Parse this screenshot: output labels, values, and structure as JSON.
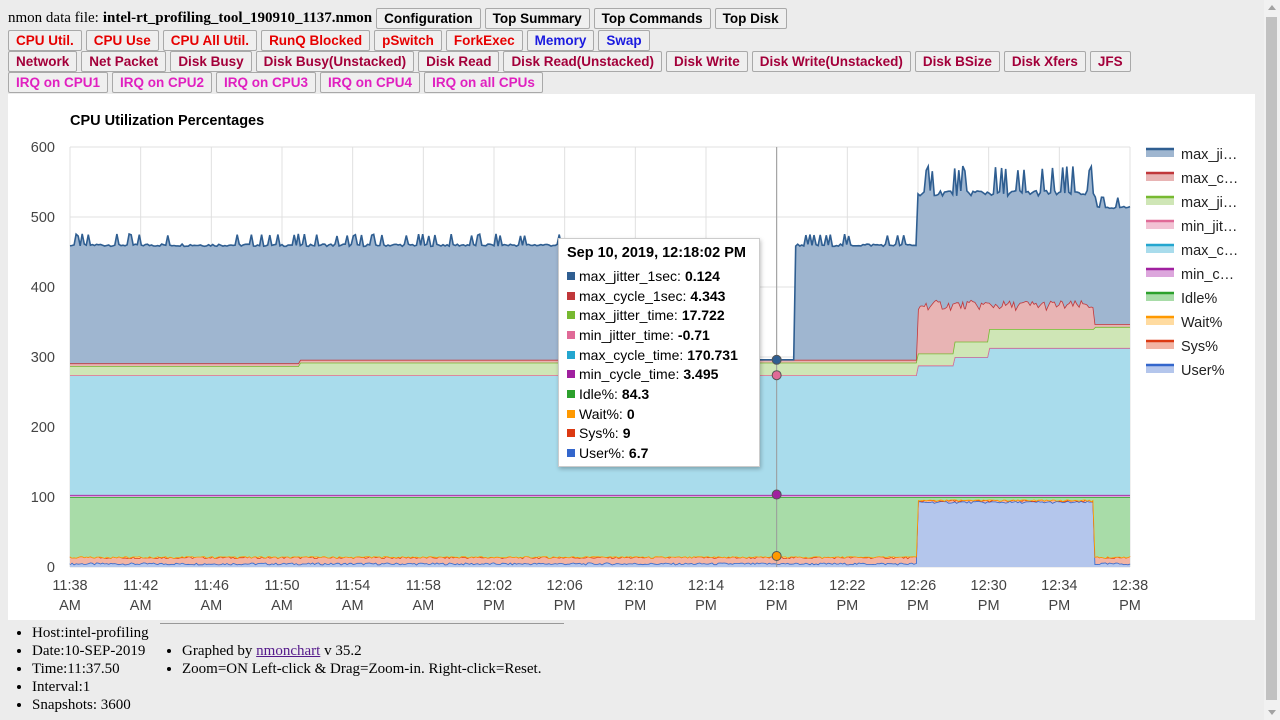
{
  "header": {
    "file_label": "nmon data file:",
    "file_name": "intel-rt_profiling_tool_190910_1137.nmon",
    "buttons": [
      "Configuration",
      "Top Summary",
      "Top Commands",
      "Top Disk"
    ]
  },
  "row1": [
    "CPU Util.",
    "CPU Use",
    "CPU All Util.",
    "RunQ Blocked",
    "pSwitch",
    "ForkExec",
    "Memory",
    "Swap"
  ],
  "row2": [
    "Network",
    "Net Packet",
    "Disk Busy",
    "Disk Busy(Unstacked)",
    "Disk Read",
    "Disk Read(Unstacked)",
    "Disk Write",
    "Disk Write(Unstacked)",
    "Disk BSize",
    "Disk Xfers",
    "JFS"
  ],
  "row3": [
    "IRQ on CPU1",
    "IRQ on CPU2",
    "IRQ on CPU3",
    "IRQ on CPU4",
    "IRQ on all CPUs"
  ],
  "colors": {
    "button_red": "#e60000",
    "button_blue": "#1a1adf",
    "button_maroon": "#a3003a",
    "button_magenta": "#e020c0"
  },
  "chart": {
    "title": "CPU Utilization Percentages",
    "legend": [
      {
        "label": "max_ji…",
        "color": "#2f5e91",
        "fill": "#9fb6d0"
      },
      {
        "label": "max_c…",
        "color": "#c0373a",
        "fill": "#e8b4b4"
      },
      {
        "label": "max_ji…",
        "color": "#77b931",
        "fill": "#cfe6b6"
      },
      {
        "label": "min_jit…",
        "color": "#e06a97",
        "fill": "#f2c2d4"
      },
      {
        "label": "max_c…",
        "color": "#23a6cf",
        "fill": "#a9dcec"
      },
      {
        "label": "min_c…",
        "color": "#a0209f",
        "fill": "#dca6dc"
      },
      {
        "label": "Idle%",
        "color": "#2ca02c",
        "fill": "#a8dca8"
      },
      {
        "label": "Wait%",
        "color": "#ff9900",
        "fill": "#ffdba0"
      },
      {
        "label": "Sys%",
        "color": "#dc3912",
        "fill": "#f2b4a4"
      },
      {
        "label": "User%",
        "color": "#3366cc",
        "fill": "#b4c6ec"
      }
    ],
    "y_ticks": [
      "0",
      "100",
      "200",
      "300",
      "400",
      "500",
      "600"
    ],
    "x_ticks": [
      [
        "11:38",
        "AM"
      ],
      [
        "11:42",
        "AM"
      ],
      [
        "11:46",
        "AM"
      ],
      [
        "11:50",
        "AM"
      ],
      [
        "11:54",
        "AM"
      ],
      [
        "11:58",
        "AM"
      ],
      [
        "12:02",
        "PM"
      ],
      [
        "12:06",
        "PM"
      ],
      [
        "12:10",
        "PM"
      ],
      [
        "12:14",
        "PM"
      ],
      [
        "12:18",
        "PM"
      ],
      [
        "12:22",
        "PM"
      ],
      [
        "12:26",
        "PM"
      ],
      [
        "12:30",
        "PM"
      ],
      [
        "12:34",
        "PM"
      ],
      [
        "12:38",
        "PM"
      ]
    ]
  },
  "chart_data": {
    "type": "area",
    "title": "CPU Utilization Percentages",
    "stacked": true,
    "ylim": [
      0,
      600
    ],
    "x_range": [
      "11:38 AM",
      "12:38 PM"
    ],
    "series_names": [
      "max_jitter_1sec",
      "max_cycle_1sec",
      "max_jitter_time",
      "min_jitter_time",
      "max_cycle_time",
      "min_cycle_time",
      "Idle%",
      "Wait%",
      "Sys%",
      "User%"
    ],
    "stack_top_levels": [
      {
        "x": "11:38 AM",
        "User%": 5,
        "Sys%": 14,
        "Wait%": 14,
        "Idle%": 100,
        "min_cycle_time": 103,
        "max_cycle_time": 274,
        "min_jitter_time": 274,
        "max_jitter_time": 287,
        "max_cycle_1sec": 291,
        "max_jitter_1sec": 458
      },
      {
        "x": "12:18 PM",
        "User%": 6.7,
        "Sys%": 15.7,
        "Wait%": 15.7,
        "Idle%": 100,
        "min_cycle_time": 103.5,
        "max_cycle_time": 274,
        "min_jitter_time": 274,
        "max_jitter_time": 292,
        "max_cycle_1sec": 296,
        "max_jitter_1sec": 296
      },
      {
        "x": "12:27 PM",
        "User%": 93,
        "Sys%": 95,
        "Wait%": 95,
        "Idle%": 100,
        "min_cycle_time": 103,
        "max_cycle_time": 300,
        "min_jitter_time": 300,
        "max_jitter_time": 322,
        "max_cycle_1sec": 368,
        "max_jitter_1sec": 530
      },
      {
        "x": "12:38 PM",
        "User%": 5,
        "Sys%": 14,
        "Wait%": 14,
        "Idle%": 100,
        "min_cycle_time": 103,
        "max_cycle_time": 313,
        "min_jitter_time": 313,
        "max_jitter_time": 343,
        "max_cycle_1sec": 347,
        "max_jitter_1sec": 512
      }
    ]
  },
  "tooltip": {
    "title": "Sep 10, 2019, 12:18:02 PM",
    "rows": [
      {
        "name": "max_jitter_1sec:",
        "value": "0.124",
        "color": "#2f5e91"
      },
      {
        "name": "max_cycle_1sec:",
        "value": "4.343",
        "color": "#c0373a"
      },
      {
        "name": "max_jitter_time:",
        "value": "17.722",
        "color": "#77b931"
      },
      {
        "name": "min_jitter_time:",
        "value": "-0.71",
        "color": "#e06a97"
      },
      {
        "name": "max_cycle_time:",
        "value": "170.731",
        "color": "#23a6cf"
      },
      {
        "name": "min_cycle_time:",
        "value": "3.495",
        "color": "#a0209f"
      },
      {
        "name": "Idle%:",
        "value": "84.3",
        "color": "#2ca02c"
      },
      {
        "name": "Wait%:",
        "value": "0",
        "color": "#ff9900"
      },
      {
        "name": "Sys%:",
        "value": "9",
        "color": "#dc3912"
      },
      {
        "name": "User%:",
        "value": "6.7",
        "color": "#3366cc"
      }
    ]
  },
  "info": {
    "host": "Host:intel-profiling",
    "date": "Date:10-SEP-2019",
    "time": "Time:11:37.50",
    "interval": "Interval:1",
    "snapshots": "Snapshots: 3600",
    "graphed_by": "Graphed by",
    "tool_link": "nmonchart",
    "version": "v 35.2",
    "zoom_help": "Zoom=ON Left-click & Drag=Zoom-in. Right-click=Reset."
  }
}
